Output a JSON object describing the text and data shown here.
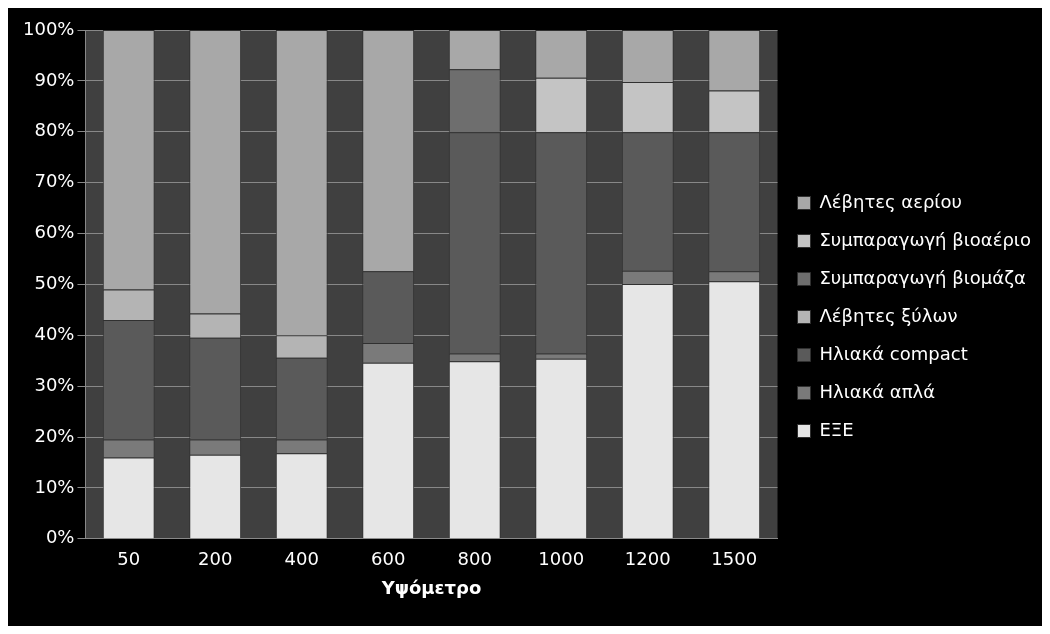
{
  "chart_data": {
    "type": "bar",
    "stacked": true,
    "xlabel": "Υψόμετρο",
    "categories": [
      "50",
      "200",
      "400",
      "600",
      "800",
      "1000",
      "1200",
      "1500"
    ],
    "series": [
      {
        "name": "ΕΞΕ",
        "color": "#e6e6e6",
        "values": [
          16,
          16.5,
          16.8,
          34.6,
          34.9,
          35.4,
          50.1,
          50.6
        ]
      },
      {
        "name": "Ηλιακά απλά",
        "color": "#7a7a7a",
        "values": [
          3.5,
          3,
          2.7,
          3.9,
          1.5,
          1,
          2.6,
          2
        ]
      },
      {
        "name": "Ηλιακά compact",
        "color": "#5a5a5a",
        "values": [
          23.5,
          20,
          16.1,
          14.1,
          43.5,
          43.5,
          27.2,
          27.3
        ]
      },
      {
        "name": "Λέβητες ξύλων",
        "color": "#b4b4b4",
        "values": [
          6,
          4.8,
          4.4,
          0,
          0,
          0,
          0,
          0
        ]
      },
      {
        "name": "Συμπαραγωγή βιομάζα",
        "color": "#6e6e6e",
        "values": [
          0,
          0,
          0,
          0,
          12.4,
          0,
          0,
          0
        ]
      },
      {
        "name": "Συμπαραγωγή βιοαέριο",
        "color": "#c4c4c4",
        "values": [
          0,
          0,
          0,
          0,
          0,
          10.7,
          9.9,
          8.2
        ]
      },
      {
        "name": "Λέβητες αερίου",
        "color": "#a8a8a8",
        "values": [
          51,
          55.7,
          60,
          47.4,
          7.7,
          9.4,
          10.2,
          11.9
        ]
      }
    ],
    "ylim": [
      0,
      100
    ],
    "yticks": [
      {
        "value": 0,
        "label": "0%"
      },
      {
        "value": 10,
        "label": "10%"
      },
      {
        "value": 20,
        "label": "20%"
      },
      {
        "value": 30,
        "label": "30%"
      },
      {
        "value": 40,
        "label": "40%"
      },
      {
        "value": 50,
        "label": "50%"
      },
      {
        "value": 60,
        "label": "60%"
      },
      {
        "value": 70,
        "label": "70%"
      },
      {
        "value": 80,
        "label": "80%"
      },
      {
        "value": 90,
        "label": "90%"
      },
      {
        "value": 100,
        "label": "100%"
      }
    ],
    "grid": "y",
    "legend": "right"
  }
}
